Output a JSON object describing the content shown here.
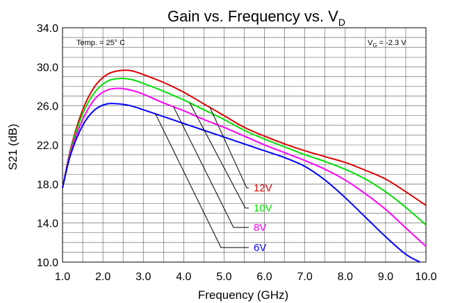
{
  "chart_data": {
    "type": "line",
    "title": "Gain vs. Frequency vs. V",
    "title_subscript": "D",
    "xlabel": "Frequency (GHz)",
    "ylabel": "S21 (dB)",
    "xlim": [
      1.0,
      10.0
    ],
    "ylim": [
      10.0,
      34.0
    ],
    "x_ticks": [
      "1.0",
      "2.0",
      "3.0",
      "4.0",
      "5.0",
      "6.0",
      "7.0",
      "8.0",
      "9.0",
      "10.0"
    ],
    "y_ticks": [
      "10.0",
      "14.0",
      "18.0",
      "22.0",
      "26.0",
      "30.0",
      "34.0"
    ],
    "grid": true,
    "annotations": {
      "temp": "Temp. = 25° C",
      "vg_prefix": "V",
      "vg_subscript": "G",
      "vg_suffix": " = -2.3 V"
    },
    "series": [
      {
        "name": "12V",
        "color": "#e00000",
        "x": [
          1.0,
          1.2,
          1.5,
          1.8,
          2.1,
          2.4,
          2.7,
          3.0,
          3.5,
          4.0,
          4.5,
          5.0,
          5.5,
          6.0,
          6.5,
          7.0,
          7.5,
          8.0,
          8.5,
          9.0,
          9.5,
          10.0
        ],
        "y": [
          17.6,
          21.6,
          25.6,
          28.0,
          29.2,
          29.6,
          29.6,
          29.2,
          28.4,
          27.4,
          26.2,
          25.0,
          23.8,
          22.9,
          22.1,
          21.4,
          20.8,
          20.2,
          19.4,
          18.5,
          17.2,
          15.8
        ]
      },
      {
        "name": "10V",
        "color": "#00e000",
        "x": [
          1.0,
          1.2,
          1.5,
          1.8,
          2.1,
          2.4,
          2.7,
          3.0,
          3.5,
          4.0,
          4.5,
          5.0,
          5.5,
          6.0,
          6.5,
          7.0,
          7.5,
          8.0,
          8.5,
          9.0,
          9.5,
          10.0
        ],
        "y": [
          17.6,
          21.4,
          25.2,
          27.4,
          28.5,
          28.8,
          28.7,
          28.3,
          27.5,
          26.6,
          25.6,
          24.6,
          23.5,
          22.6,
          21.8,
          21.0,
          20.3,
          19.5,
          18.5,
          17.2,
          15.6,
          13.8
        ]
      },
      {
        "name": "8V",
        "color": "#ff00ff",
        "x": [
          1.0,
          1.2,
          1.5,
          1.8,
          2.1,
          2.4,
          2.7,
          3.0,
          3.5,
          4.0,
          4.5,
          5.0,
          5.5,
          6.0,
          6.5,
          7.0,
          7.5,
          8.0,
          8.5,
          9.0,
          9.5,
          10.0
        ],
        "y": [
          17.6,
          21.2,
          24.6,
          26.7,
          27.6,
          27.8,
          27.6,
          27.2,
          26.3,
          25.5,
          24.6,
          23.8,
          22.9,
          22.0,
          21.2,
          20.4,
          19.5,
          18.4,
          17.0,
          15.4,
          13.5,
          11.6
        ]
      },
      {
        "name": "6V",
        "color": "#0000ff",
        "x": [
          1.0,
          1.2,
          1.5,
          1.8,
          2.1,
          2.4,
          2.7,
          3.0,
          3.5,
          4.0,
          4.5,
          5.0,
          5.5,
          6.0,
          6.5,
          7.0,
          7.5,
          8.0,
          8.5,
          9.0,
          9.5,
          9.85
        ],
        "y": [
          17.6,
          21.0,
          24.0,
          25.6,
          26.2,
          26.2,
          26.0,
          25.6,
          24.9,
          24.2,
          23.5,
          22.8,
          22.1,
          21.4,
          20.7,
          19.8,
          18.4,
          16.6,
          14.6,
          12.6,
          10.8,
          10.0
        ]
      }
    ]
  }
}
